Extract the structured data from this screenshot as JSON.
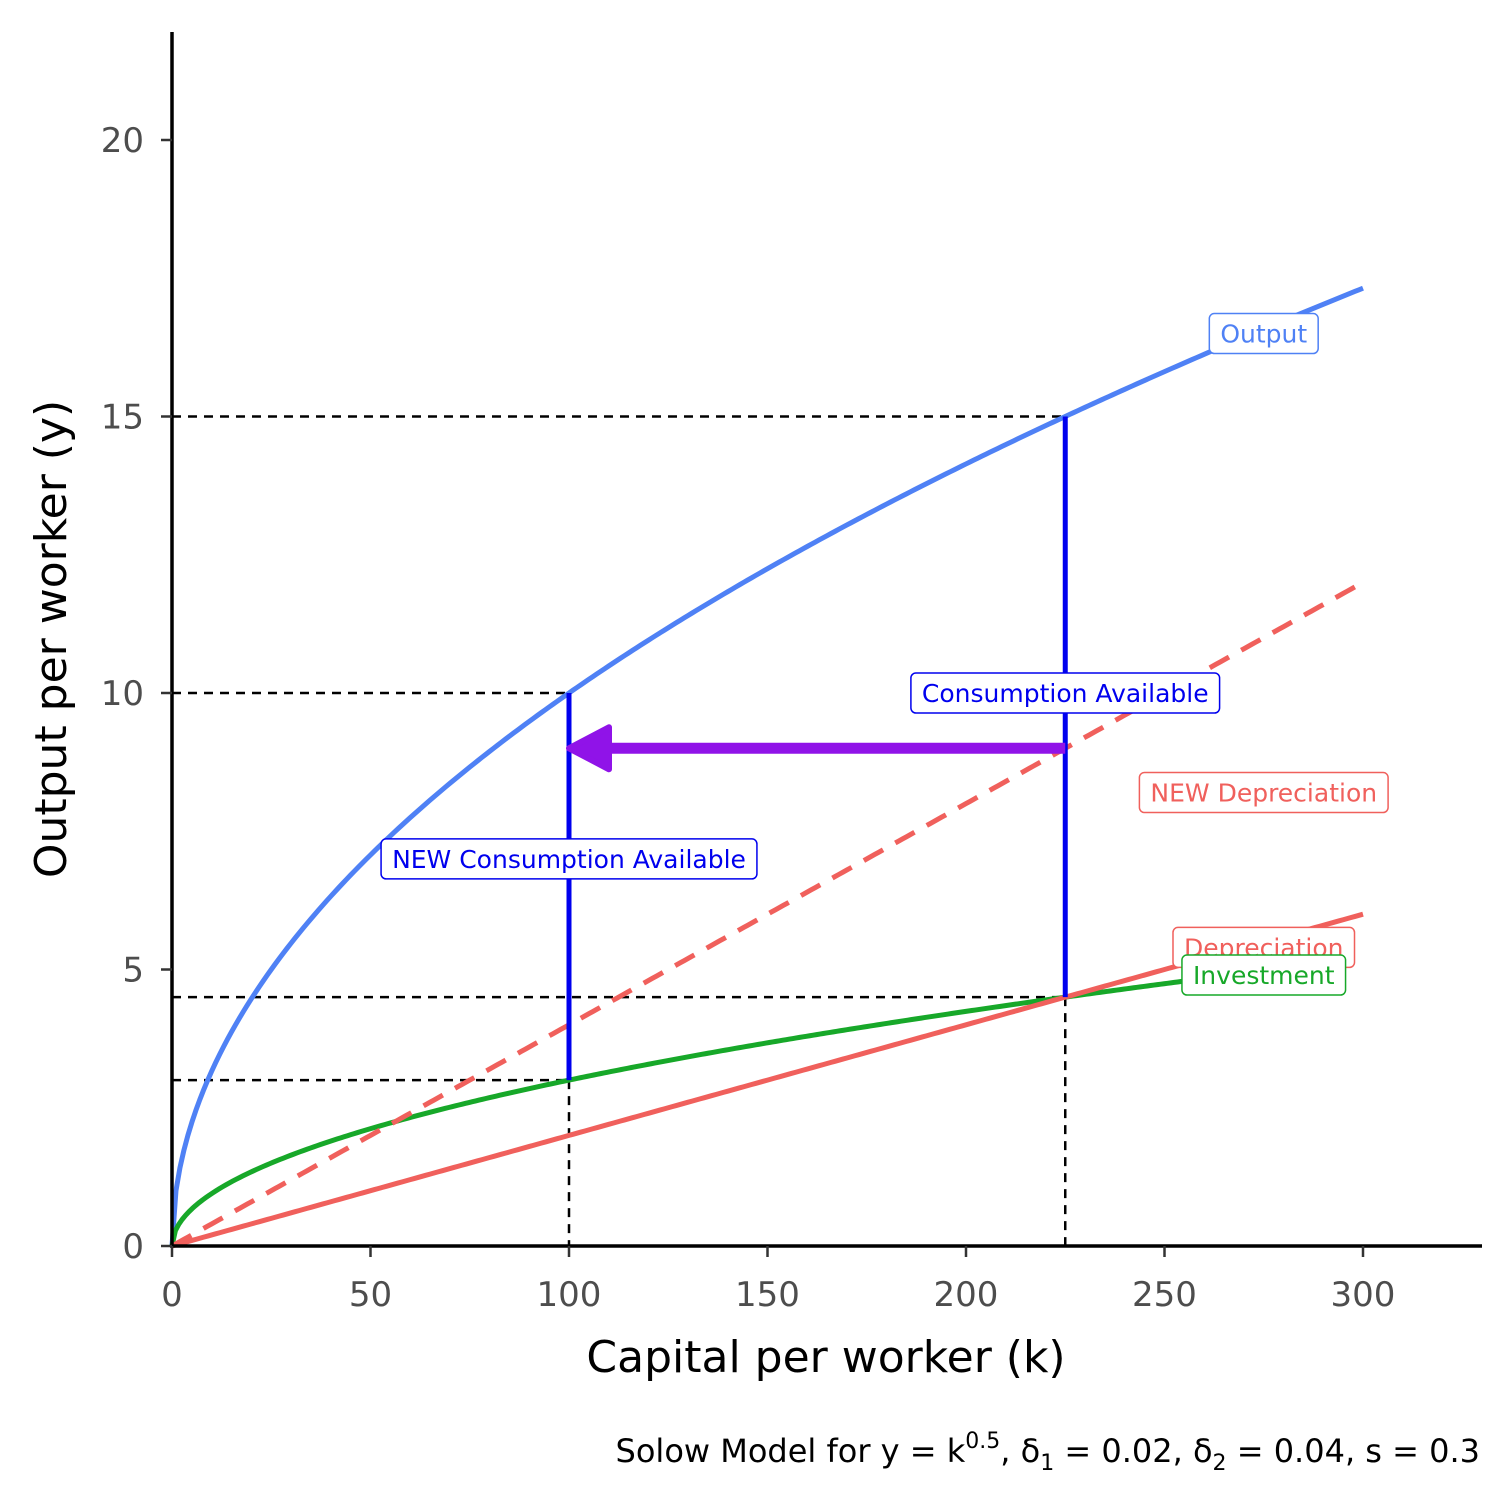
{
  "chart_data": {
    "type": "line",
    "title": "",
    "xlabel": "Capital per worker (k)",
    "ylabel": "Output per worker (y)",
    "caption": {
      "prefix": "Solow Model for y = k",
      "exponent": "0.5",
      "d1_symbol": ", δ",
      "d1_sub": "1",
      "d1_value": " = 0.02, ",
      "d2_symbol": "δ",
      "d2_sub": "2",
      "d2_value": " = 0.04, s = 0.3"
    },
    "xlim": [
      0,
      330
    ],
    "ylim": [
      0,
      22
    ],
    "x_ticks": [
      0,
      50,
      100,
      150,
      200,
      250,
      300
    ],
    "y_ticks": [
      0,
      5,
      10,
      15,
      20
    ],
    "series": [
      {
        "name": "Output",
        "function": "k^0.5",
        "x_range": [
          0,
          300
        ],
        "color": "#4f81f5",
        "dashed": false
      },
      {
        "name": "Investment",
        "function": "0.3*k^0.5",
        "x_range": [
          0,
          255
        ],
        "color": "#17a829",
        "dashed": false
      },
      {
        "name": "Depreciation",
        "function": "0.02*k",
        "x_range": [
          0,
          300
        ],
        "color": "#f0605c",
        "dashed": false
      },
      {
        "name": "NEW Depreciation",
        "function": "0.04*k",
        "x_range": [
          0,
          300
        ],
        "color": "#f0605c",
        "dashed": true
      }
    ],
    "curve_labels": [
      {
        "text": "Output",
        "x": 275,
        "y": 16.5,
        "color": "#4f81f5"
      },
      {
        "text": "Depreciation",
        "x": 275,
        "y": 5.4,
        "color": "#f0605c"
      },
      {
        "text": "Investment",
        "x": 275,
        "y": 4.9,
        "color": "#17a829"
      },
      {
        "text": "NEW Depreciation",
        "x": 275,
        "y": 8.2,
        "color": "#f0605c"
      },
      {
        "text": "Consumption Available",
        "x": 225,
        "y": 10.0,
        "color": "#0000ee"
      },
      {
        "text": "NEW Consumption Available",
        "x": 100,
        "y": 7.0,
        "color": "#0000ee"
      }
    ],
    "reference_lines": [
      {
        "k": 225,
        "y": 15,
        "color": "#000000",
        "dashed": true
      },
      {
        "k": 225,
        "y": 4.5,
        "color": "#000000",
        "dashed": true
      },
      {
        "k": 100,
        "y": 10,
        "color": "#000000",
        "dashed": true
      },
      {
        "k": 100,
        "y": 3,
        "color": "#000000",
        "dashed": true
      }
    ],
    "consumption_segments": [
      {
        "k": 225,
        "y_from": 4.5,
        "y_to": 15,
        "color": "#0000ee"
      },
      {
        "k": 100,
        "y_from": 3,
        "y_to": 10,
        "color": "#0000ee"
      }
    ],
    "arrow": {
      "from": [
        225,
        9
      ],
      "to": [
        100,
        9
      ],
      "color": "#9013e8"
    }
  }
}
